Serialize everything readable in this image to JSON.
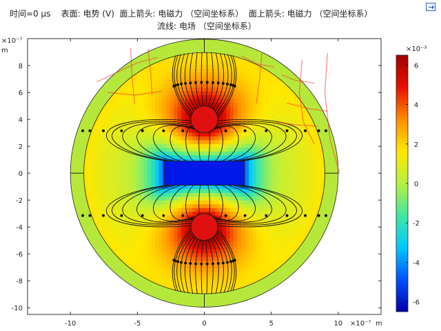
{
  "header": {
    "line1": "时间=0 µs    表面: 电势 (V)  面上箭头: 电磁力 （空间坐标系）  面上箭头: 电磁力 （空间坐标系）",
    "line2": "流线: 电场 （空间坐标系）"
  },
  "icons": {
    "export": "export-icon"
  },
  "chart_data": {
    "type": "heatmap",
    "title": "",
    "xlabel": "m",
    "ylabel": "m",
    "x_exponent": "×10⁻⁷",
    "y_exponent": "×10⁻⁷",
    "xlim": [
      -13.2,
      13.2
    ],
    "ylim": [
      -10.5,
      10.0
    ],
    "x_ticks": [
      -10,
      -5,
      0,
      5,
      10
    ],
    "y_ticks": [
      8,
      6,
      4,
      2,
      0,
      -2,
      -4,
      -6,
      -8,
      -10
    ],
    "x_tick_labels": [
      "-10",
      "-5",
      "0",
      "5",
      "10"
    ],
    "y_tick_labels": [
      "8",
      "6",
      "4",
      "2",
      "0",
      "-2",
      "-4",
      "-6",
      "-8",
      "-10"
    ],
    "grid": false,
    "domain": {
      "outer_circle_radius": 10,
      "inner_circle_radius": 9,
      "top_electrode_center": [
        0,
        4
      ],
      "bottom_electrode_center": [
        0,
        -4
      ],
      "electrode_radius": 1,
      "center_rect": {
        "x": [
          -3,
          3
        ],
        "y": [
          -0.9,
          0.9
        ]
      }
    },
    "field": {
      "top_electrode_potential": 0.0065,
      "bottom_electrode_potential": 0.0065,
      "center_rect_potential": -0.0065,
      "outer_ring_potential": 0.0018
    },
    "colorbar": {
      "exponent": "×10⁻³",
      "ticks": [
        6,
        4,
        2,
        0,
        -2,
        -4,
        -6
      ],
      "tick_labels": [
        "6",
        "4",
        "2",
        "0",
        "-2",
        "-4",
        "-6"
      ],
      "min": -6.5,
      "max": 6.5,
      "colormap": [
        "#0000a8",
        "#0050ff",
        "#00c8ff",
        "#40e8a0",
        "#b8f040",
        "#ffe800",
        "#ff8c00",
        "#e81000",
        "#a00000"
      ]
    },
    "streamlines": {
      "count_per_side": 16
    },
    "handwriting": {
      "color": "#ff3030",
      "opacity": 0.55
    }
  }
}
